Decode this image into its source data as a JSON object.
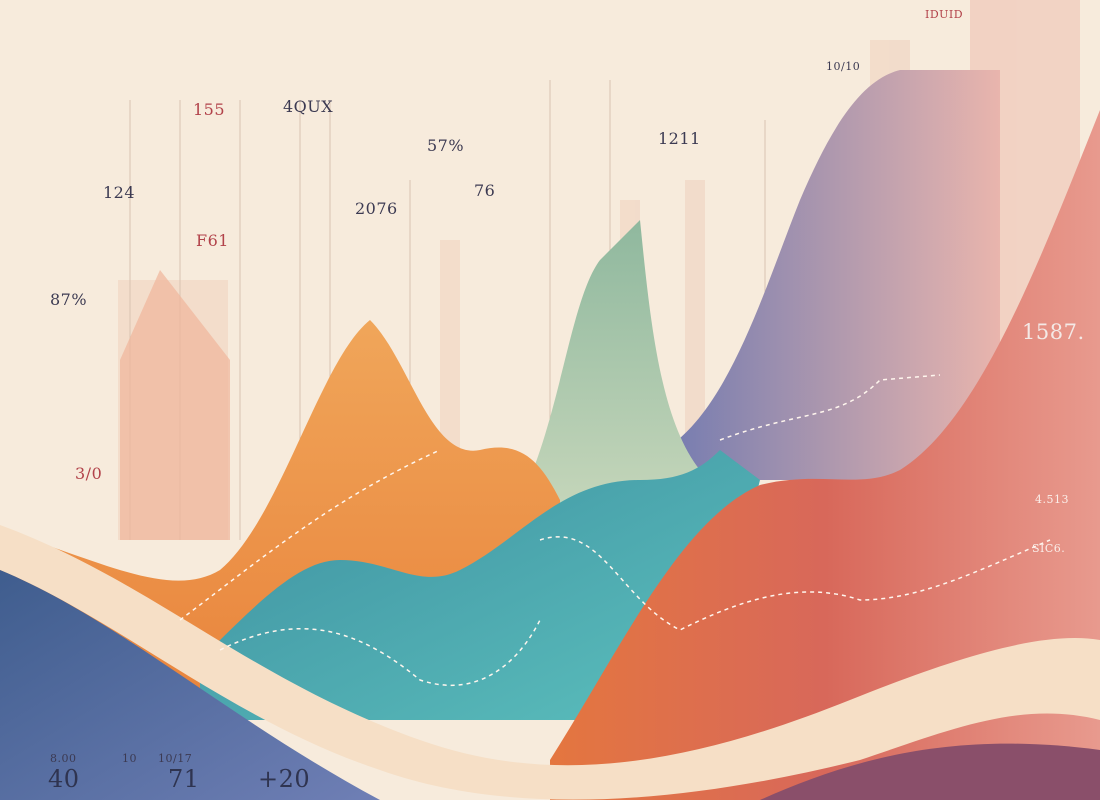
{
  "labels": {
    "top_left_a": "155",
    "top_left_b": "4QUX",
    "left_a": "124",
    "left_b": "F61",
    "left_c": "87%",
    "mid_a": "2076",
    "mid_b": "57%",
    "mid_c": "76",
    "mid_d": "1211",
    "top_right_a": "10/10",
    "top_right_b": "IDUID",
    "right_a": "1587.",
    "right_b": "4.513",
    "right_c": "SIC6.",
    "left_low": "3/0"
  },
  "footer": {
    "small": [
      "8.00",
      "10",
      "10/17"
    ],
    "big": [
      "40",
      "71",
      "+20"
    ]
  }
}
